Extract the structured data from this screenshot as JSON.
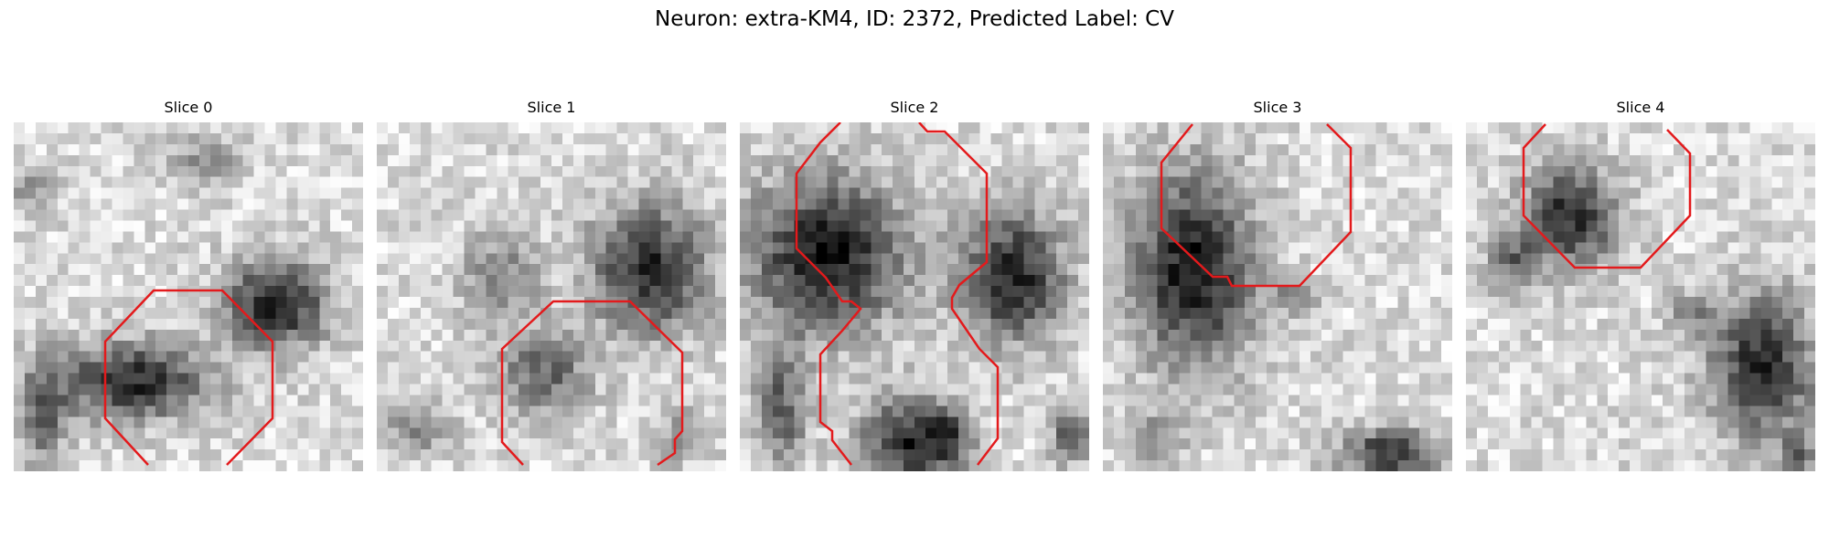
{
  "figure": {
    "title": "Neuron: extra-KM4, ID: 2372, Predicted Label: CV"
  },
  "panels": [
    {
      "title": "Slice 0"
    },
    {
      "title": "Slice 1"
    },
    {
      "title": "Slice 2"
    },
    {
      "title": "Slice 3"
    },
    {
      "title": "Slice 4"
    }
  ],
  "colors": {
    "contour": "#e31a1c",
    "background": "#ffffff"
  }
}
